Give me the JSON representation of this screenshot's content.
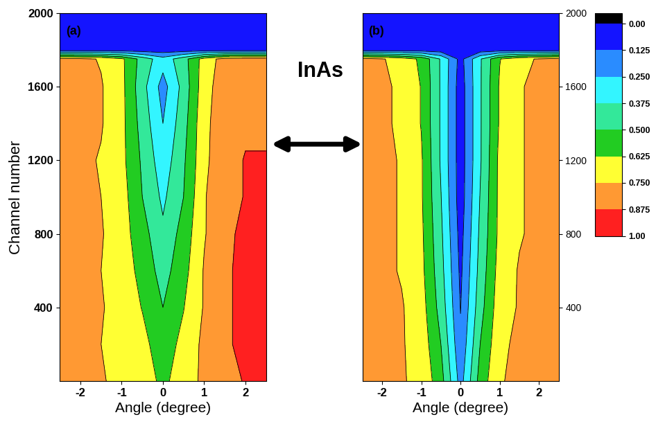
{
  "chart_data": [
    {
      "type": "contour",
      "annotations": [
        "(a)"
      ],
      "xlabel": "Angle (degree)",
      "ylabel": "Channel number",
      "x": [
        -2.5,
        -2,
        -1.5,
        -1,
        -0.5,
        0,
        0.5,
        1,
        1.5,
        2,
        2.5
      ],
      "y": [
        0,
        200,
        400,
        600,
        800,
        1000,
        1200,
        1400,
        1600,
        1750,
        1800,
        2000
      ],
      "cells": [
        [
          0.8,
          0.78,
          0.76,
          0.72,
          0.68,
          0.6,
          0.68,
          0.78,
          0.85,
          0.88,
          0.92
        ],
        [
          0.8,
          0.77,
          0.75,
          0.72,
          0.66,
          0.56,
          0.66,
          0.78,
          0.86,
          0.9,
          0.92
        ],
        [
          0.78,
          0.78,
          0.76,
          0.7,
          0.62,
          0.5,
          0.62,
          0.76,
          0.86,
          0.9,
          0.92
        ],
        [
          0.8,
          0.77,
          0.75,
          0.7,
          0.58,
          0.45,
          0.58,
          0.76,
          0.86,
          0.9,
          0.9
        ],
        [
          0.78,
          0.78,
          0.76,
          0.68,
          0.55,
          0.4,
          0.55,
          0.74,
          0.85,
          0.9,
          0.92
        ],
        [
          0.8,
          0.78,
          0.75,
          0.68,
          0.5,
          0.35,
          0.5,
          0.74,
          0.84,
          0.88,
          0.9
        ],
        [
          0.8,
          0.78,
          0.74,
          0.66,
          0.48,
          0.3,
          0.48,
          0.72,
          0.84,
          0.88,
          0.88
        ],
        [
          0.82,
          0.8,
          0.76,
          0.66,
          0.45,
          0.25,
          0.45,
          0.72,
          0.82,
          0.86,
          0.86
        ],
        [
          0.84,
          0.8,
          0.76,
          0.66,
          0.42,
          0.2,
          0.42,
          0.7,
          0.82,
          0.86,
          0.86
        ],
        [
          0.8,
          0.78,
          0.74,
          0.65,
          0.45,
          0.3,
          0.45,
          0.68,
          0.8,
          0.82,
          0.82
        ],
        [
          0.05,
          0.05,
          0.05,
          0.05,
          0.05,
          0.05,
          0.05,
          0.05,
          0.05,
          0.05,
          0.05
        ],
        [
          0.05,
          0.05,
          0.05,
          0.05,
          0.05,
          0.05,
          0.05,
          0.05,
          0.05,
          0.05,
          0.05
        ]
      ],
      "xlim": [
        -2.5,
        2.5
      ],
      "xticks": [
        -2,
        -1,
        0,
        1,
        2
      ],
      "ylim": [
        0,
        2000
      ],
      "yticks": [
        400,
        800,
        1200,
        1600,
        2000
      ]
    },
    {
      "type": "contour",
      "annotations": [
        "(b)"
      ],
      "xlabel": "Angle (degree)",
      "x": [
        -2.5,
        -2,
        -1.5,
        -1,
        -0.5,
        0,
        0.5,
        1,
        1.5,
        2,
        2.5
      ],
      "y": [
        0,
        200,
        400,
        600,
        800,
        1000,
        1200,
        1400,
        1600,
        1750,
        1800,
        2000
      ],
      "cells": [
        [
          0.85,
          0.8,
          0.76,
          0.72,
          0.55,
          0.2,
          0.55,
          0.74,
          0.78,
          0.82,
          0.85
        ],
        [
          0.85,
          0.8,
          0.76,
          0.7,
          0.5,
          0.15,
          0.5,
          0.72,
          0.78,
          0.82,
          0.84
        ],
        [
          0.82,
          0.8,
          0.76,
          0.68,
          0.45,
          0.12,
          0.45,
          0.7,
          0.76,
          0.8,
          0.82
        ],
        [
          0.8,
          0.78,
          0.74,
          0.66,
          0.42,
          0.1,
          0.42,
          0.68,
          0.76,
          0.78,
          0.8
        ],
        [
          0.8,
          0.78,
          0.74,
          0.65,
          0.4,
          0.08,
          0.4,
          0.66,
          0.74,
          0.78,
          0.8
        ],
        [
          0.8,
          0.78,
          0.74,
          0.64,
          0.38,
          0.06,
          0.38,
          0.66,
          0.74,
          0.78,
          0.8
        ],
        [
          0.8,
          0.78,
          0.74,
          0.64,
          0.36,
          0.06,
          0.36,
          0.66,
          0.74,
          0.78,
          0.8
        ],
        [
          0.8,
          0.78,
          0.72,
          0.62,
          0.36,
          0.06,
          0.36,
          0.64,
          0.74,
          0.78,
          0.8
        ],
        [
          0.82,
          0.78,
          0.72,
          0.62,
          0.36,
          0.06,
          0.36,
          0.64,
          0.74,
          0.78,
          0.8
        ],
        [
          0.8,
          0.76,
          0.7,
          0.6,
          0.36,
          0.08,
          0.36,
          0.62,
          0.72,
          0.76,
          0.8
        ],
        [
          0.05,
          0.05,
          0.05,
          0.05,
          0.05,
          0.05,
          0.05,
          0.05,
          0.05,
          0.05,
          0.05
        ],
        [
          0.05,
          0.05,
          0.05,
          0.05,
          0.05,
          0.05,
          0.05,
          0.05,
          0.05,
          0.05,
          0.05
        ]
      ],
      "xlim": [
        -2.5,
        2.5
      ],
      "xticks": [
        -2,
        -1,
        0,
        1,
        2
      ],
      "ylim": [
        0,
        2000
      ],
      "yticks": [
        400,
        800,
        1200,
        1600,
        2000
      ]
    }
  ],
  "colorbar": {
    "range": [
      0,
      1
    ],
    "ticks": [
      {
        "value": 0,
        "label": "0.00"
      },
      0.125,
      {
        "value": 0.25,
        "label": "0.250"
      },
      0.375,
      {
        "value": 0.5,
        "label": "0.500"
      },
      0.625,
      {
        "value": 0.75,
        "label": "0.750"
      },
      0.875,
      {
        "value": 1,
        "label": "1.00"
      }
    ],
    "colors": [
      "#000000",
      "#1414ff",
      "#2a8cff",
      "#33f5ff",
      "#33e89a",
      "#22cc22",
      "#ffff33",
      "#ff9933",
      "#ff2020"
    ]
  },
  "annotation": "InAs"
}
